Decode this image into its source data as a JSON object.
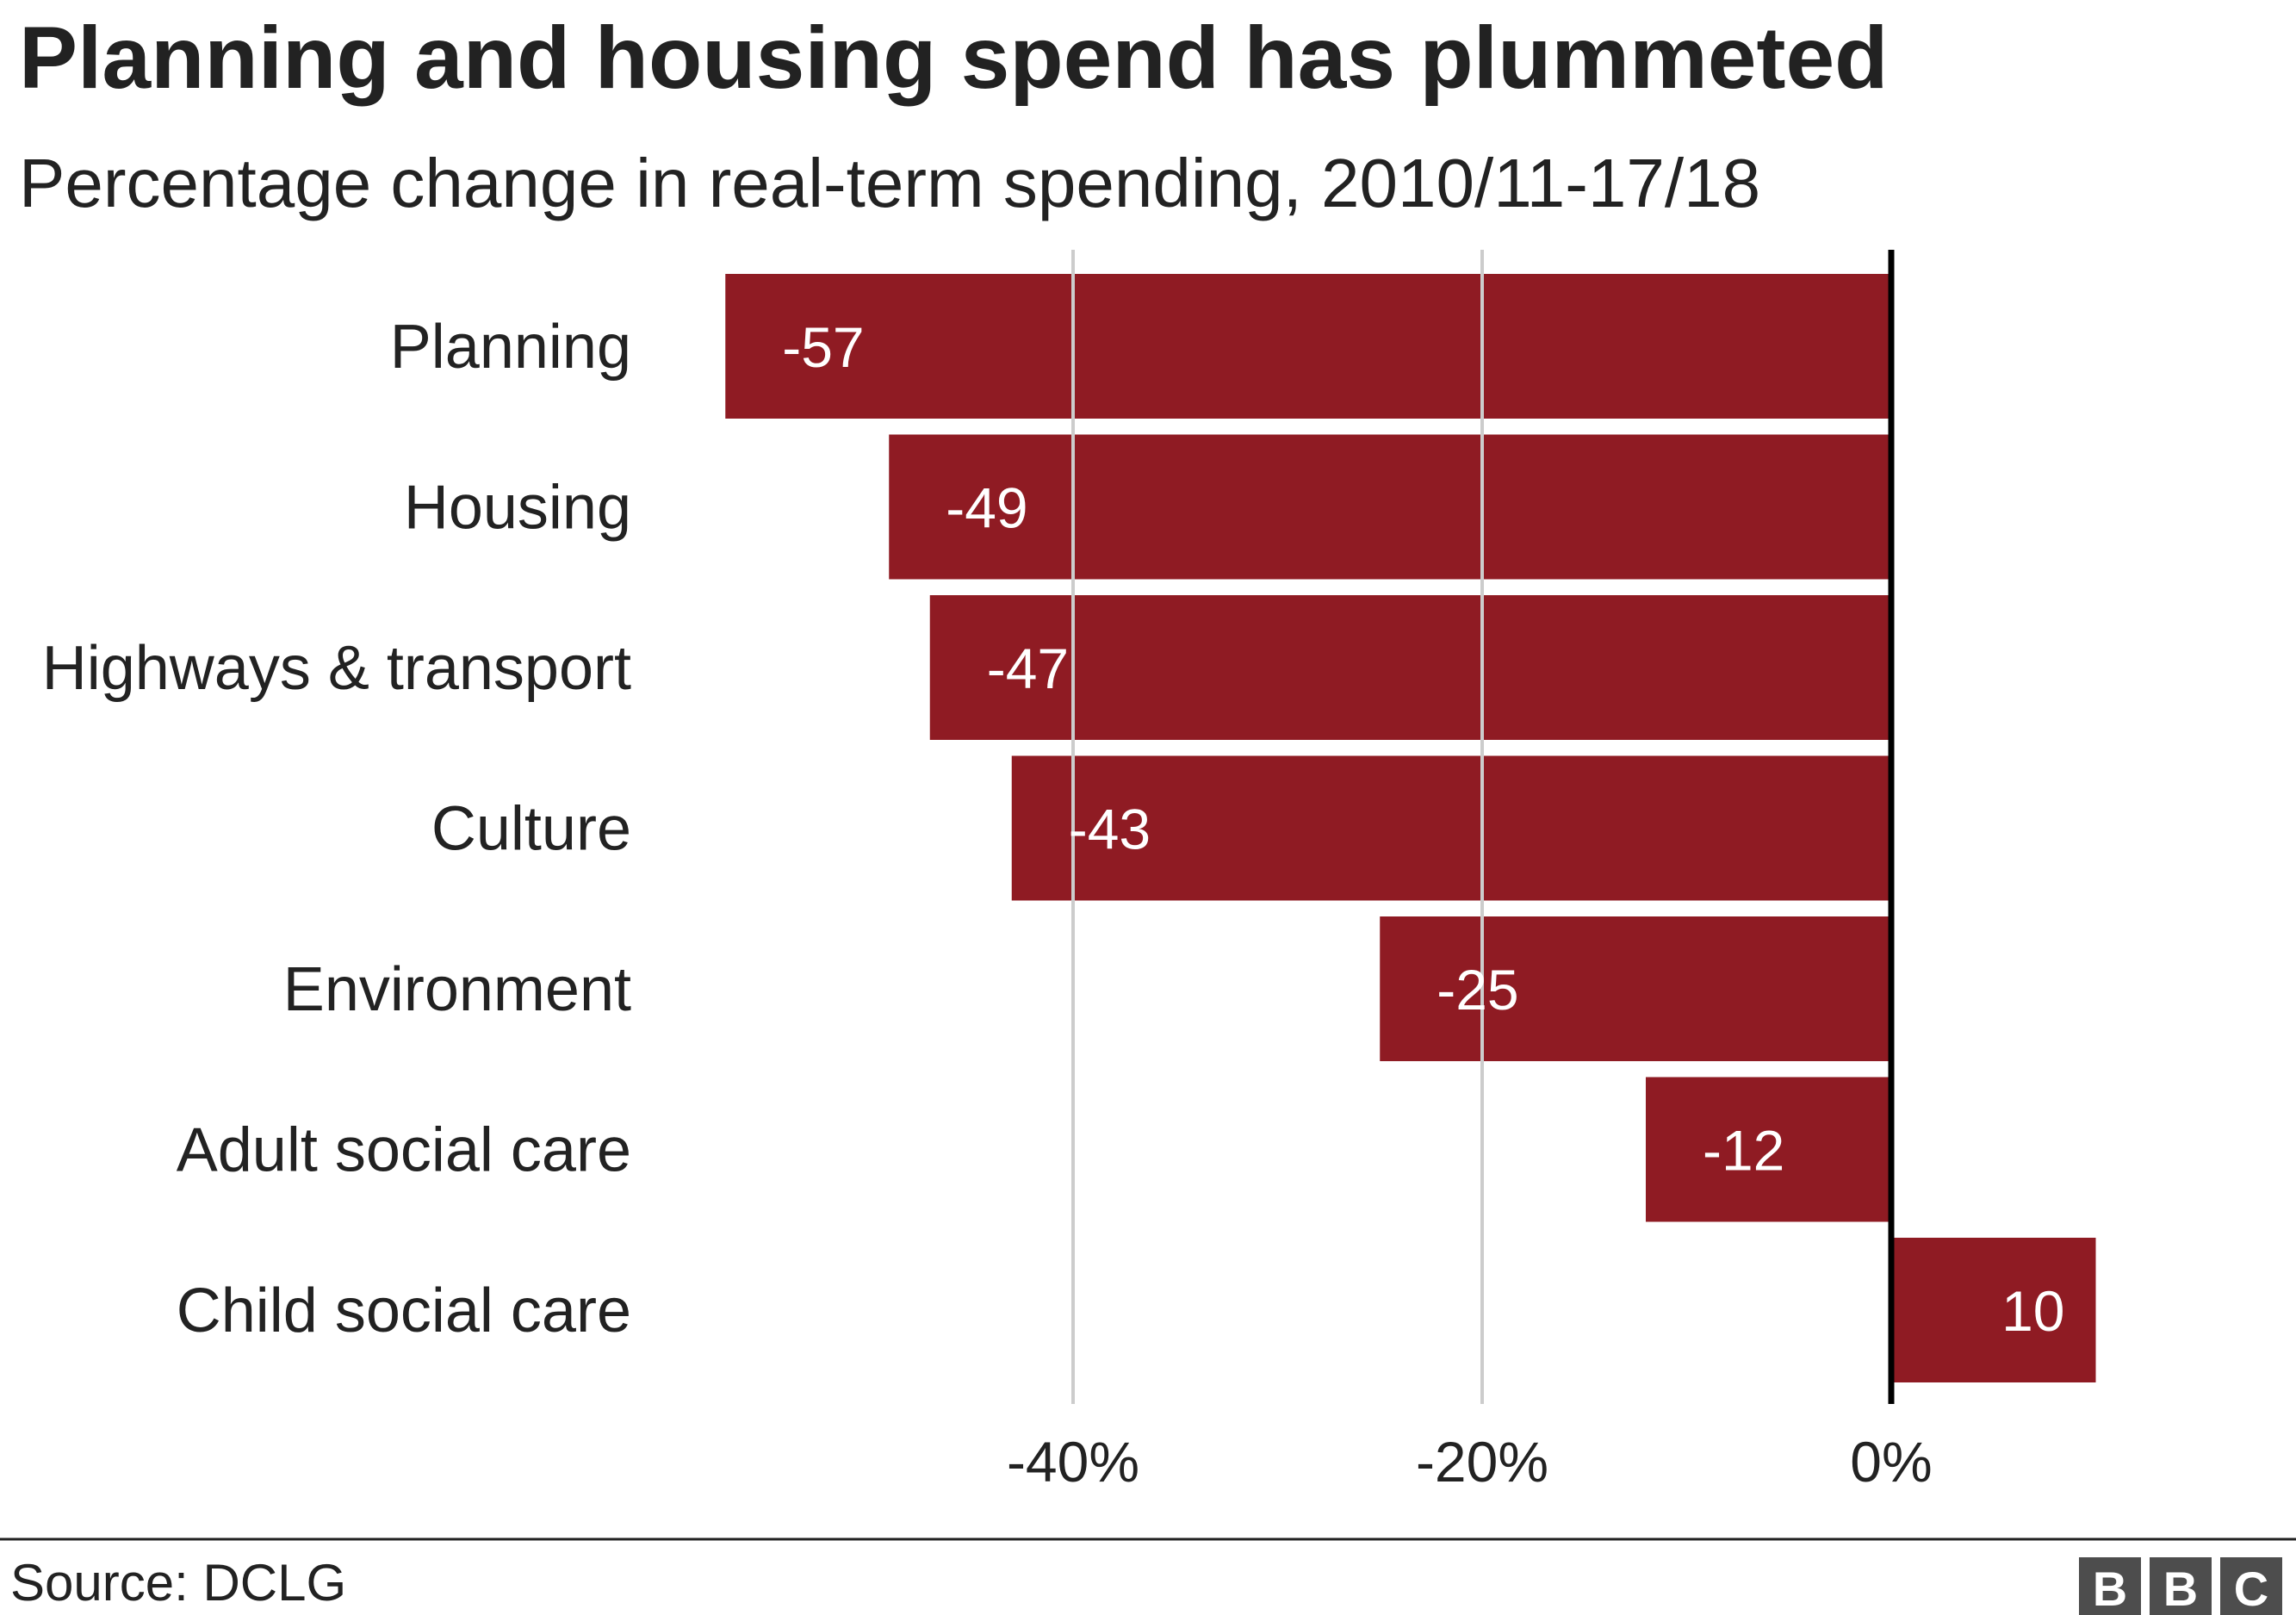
{
  "chart_data": {
    "type": "bar",
    "orientation": "horizontal",
    "title": "Planning and housing spend has plummeted",
    "subtitle": "Percentage change in real-term spending, 2010/11-17/18",
    "categories": [
      "Planning",
      "Housing",
      "Highways & transport",
      "Culture",
      "Environment",
      "Adult social care",
      "Child social care"
    ],
    "values": [
      -57,
      -49,
      -47,
      -43,
      -25,
      -12,
      10
    ],
    "value_labels": [
      "-57",
      "-49",
      "-47",
      "-43",
      "-25",
      "-12",
      "10"
    ],
    "xlim": [
      -60,
      20
    ],
    "x_ticks": [
      -40,
      -20,
      0
    ],
    "x_tick_labels": [
      "-40%",
      "-20%",
      "0%"
    ],
    "xlabel": "",
    "ylabel": "",
    "grid": true,
    "legend": "none",
    "bar_color": "#8f1b23",
    "gridline_color": "#cccccc",
    "zero_line_color": "#000000"
  },
  "footer": {
    "source": "Source: DCLG",
    "logo_letters": [
      "B",
      "B",
      "C"
    ],
    "logo_color": "#4d4d4d"
  }
}
